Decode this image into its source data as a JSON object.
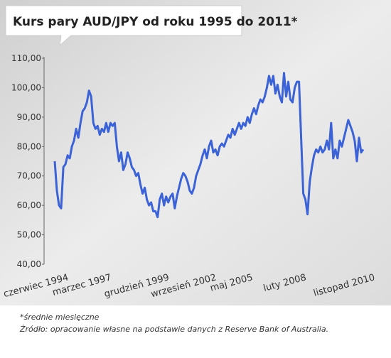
{
  "chart_data": {
    "type": "line",
    "title": "Kurs pary AUD/JPY od roku 1995 do 2011*",
    "notes": [
      "*średnie miesięczne",
      "Źródło: opracowanie własne na podstawie danych z Reserve Bank of Australia."
    ],
    "categories": [
      "czerwiec 1994",
      null,
      null,
      null,
      null,
      null,
      null,
      null,
      null,
      null,
      null,
      null,
      null,
      null,
      null,
      null,
      null,
      null,
      null,
      null,
      "marzec 1997",
      null,
      null,
      null,
      null,
      null,
      null,
      null,
      null,
      null,
      null,
      null,
      null,
      null,
      null,
      null,
      null,
      null,
      null,
      null,
      null,
      null,
      null,
      null,
      null,
      null,
      null,
      "grudzień 1999",
      null,
      null,
      null,
      null,
      null,
      null,
      null,
      null,
      null,
      null,
      null,
      null,
      null,
      null,
      null,
      null,
      null,
      null,
      null,
      null,
      null,
      "wrzesień 2002",
      null,
      null,
      null,
      null,
      null,
      null,
      null,
      null,
      null,
      null,
      null,
      null,
      null,
      null,
      null,
      null,
      "maj 2005",
      null,
      null,
      null,
      null,
      null,
      null,
      null,
      null,
      null,
      null,
      null,
      null,
      null,
      null,
      null,
      null,
      null,
      null,
      null,
      null,
      null,
      null,
      null,
      null,
      "luty 2008",
      null,
      null,
      null,
      null,
      null,
      null,
      null,
      null,
      null,
      null,
      null,
      null,
      null,
      null,
      null,
      null,
      null,
      null,
      null,
      null,
      null,
      null,
      null,
      null,
      null,
      null,
      null,
      null,
      null,
      null,
      null,
      "listopad 2010",
      null
    ],
    "series": [
      {
        "name": "AUD/JPY",
        "color": "#3b62d6",
        "values": [
          75,
          65,
          60,
          59,
          73,
          74,
          77,
          76,
          80,
          82,
          86,
          83,
          88,
          92,
          93,
          95,
          99,
          97,
          88,
          86,
          87,
          84,
          86,
          85,
          88,
          85,
          88,
          87,
          88,
          80,
          75,
          78,
          72,
          74,
          78,
          76,
          73,
          72,
          70,
          71,
          67,
          64,
          66,
          62,
          60,
          61,
          58,
          58,
          56,
          62,
          64,
          60,
          63,
          61,
          63,
          64,
          59,
          63,
          66,
          69,
          71,
          70,
          68,
          65,
          64,
          66,
          70,
          72,
          74,
          77,
          79,
          76,
          80,
          82,
          78,
          79,
          77,
          80,
          81,
          80,
          82,
          84,
          83,
          86,
          84,
          86,
          88,
          86,
          88,
          87,
          90,
          88,
          91,
          93,
          91,
          94,
          96,
          95,
          97,
          100,
          104,
          101,
          104,
          98,
          101,
          97,
          95,
          105,
          97,
          102,
          96,
          95,
          100,
          102,
          102,
          83,
          64,
          62,
          57,
          68,
          73,
          77,
          79,
          78,
          80,
          78,
          79,
          82,
          79,
          88,
          76,
          79,
          76,
          82,
          80,
          83,
          86,
          89,
          87,
          85,
          82,
          75,
          83,
          78,
          79
        ]
      }
    ],
    "ylim": [
      40,
      110
    ],
    "yticks": [
      {
        "value": 40,
        "label": "40,00"
      },
      {
        "value": 50,
        "label": "50,00"
      },
      {
        "value": 60,
        "label": "60,00"
      },
      {
        "value": 70,
        "label": "70,00"
      },
      {
        "value": 80,
        "label": "80,00"
      },
      {
        "value": 90,
        "label": "90,00"
      },
      {
        "value": 100,
        "label": "100,00"
      },
      {
        "value": 110,
        "label": "110,00"
      }
    ],
    "grid": false
  }
}
